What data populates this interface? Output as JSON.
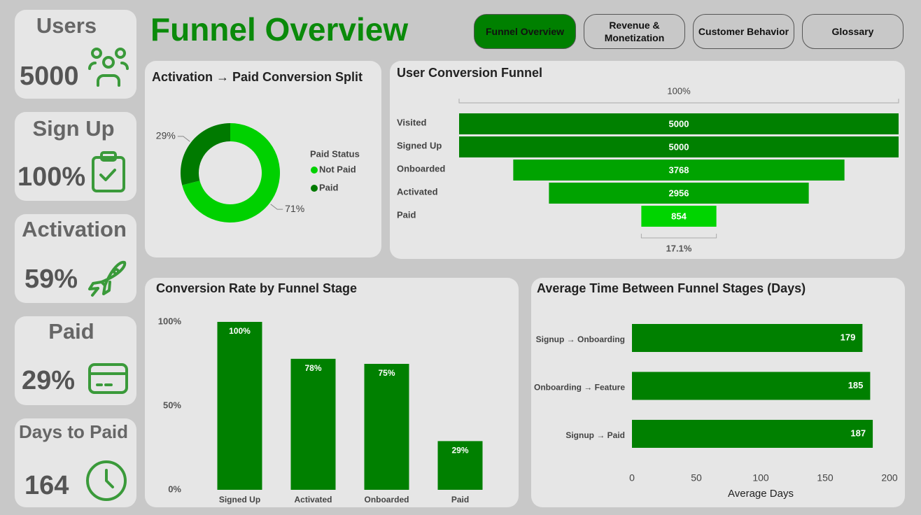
{
  "title": "Funnel Overview",
  "nav": [
    "Funnel Overview",
    "Revenue & Monetization",
    "Customer Behavior",
    "Glossary"
  ],
  "kpis": [
    {
      "label": "Users",
      "value": 5000
    },
    {
      "label": "Sign Up",
      "value": "100%"
    },
    {
      "label": "Activation",
      "value": "59%"
    },
    {
      "label": "Paid",
      "value": "29%"
    },
    {
      "label": "Days to Paid",
      "value": 164
    }
  ],
  "chart_data": [
    {
      "type": "donut",
      "title": "Activation → Paid Conversion Split",
      "legend_title": "Paid Status",
      "categories": [
        "Not Paid",
        "Paid"
      ],
      "values": [
        71,
        29
      ],
      "value_labels": [
        "71%",
        "29%"
      ],
      "colors": [
        "#00d100",
        "#007a00"
      ]
    },
    {
      "type": "funnel",
      "title": "User Conversion Funnel",
      "categories": [
        "Visited",
        "Signed Up",
        "Onboarded",
        "Activated",
        "Paid"
      ],
      "values": [
        5000,
        5000,
        3768,
        2956,
        854
      ],
      "colors": [
        "#008000",
        "#008000",
        "#00a300",
        "#00a300",
        "#00d400"
      ],
      "top_label": "100%",
      "bottom_label": "17.1%"
    },
    {
      "type": "bar",
      "title": "Conversion Rate by Funnel Stage",
      "categories": [
        "Signed Up",
        "Activated",
        "Onboarded",
        "Paid"
      ],
      "values": [
        100,
        78,
        75,
        29
      ],
      "value_labels": [
        "100%",
        "78%",
        "75%",
        "29%"
      ],
      "ylim": [
        0,
        100
      ],
      "yticks": [
        {
          "value": 0,
          "label": "0%"
        },
        {
          "value": 50,
          "label": "50%"
        },
        {
          "value": 100,
          "label": "100%"
        }
      ],
      "color": "#008000"
    },
    {
      "type": "barh",
      "title": "Average Time Between Funnel Stages (Days)",
      "categories": [
        "Signup → Onboarding",
        "Onboarding → Feature",
        "Signup → Paid"
      ],
      "values": [
        179,
        185,
        187
      ],
      "xlim": [
        0,
        200
      ],
      "xticks": [
        0,
        50,
        100,
        150,
        200
      ],
      "xlabel": "Average Days",
      "color": "#008000"
    }
  ]
}
